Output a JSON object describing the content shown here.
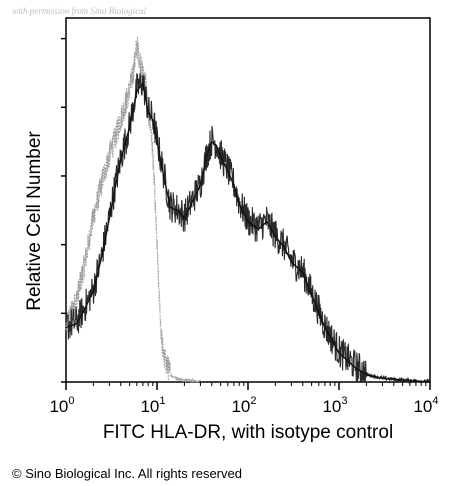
{
  "watermark": "with permission from Sino Biological",
  "copyright": "© Sino Biological Inc. All rights reserved",
  "chart_data": {
    "type": "area",
    "title": "",
    "xlabel": "FITC HLA-DR, with isotype control",
    "ylabel": "Relative Cell Number",
    "xscale": "log",
    "xlim": [
      1,
      10000
    ],
    "ylim": [
      0,
      100
    ],
    "grid": false,
    "legend": "none",
    "x_ticks": [
      {
        "value": 1,
        "base": "10",
        "exp": "0"
      },
      {
        "value": 10,
        "base": "10",
        "exp": "1"
      },
      {
        "value": 100,
        "base": "10",
        "exp": "2"
      },
      {
        "value": 1000,
        "base": "10",
        "exp": "3"
      },
      {
        "value": 10000,
        "base": "10",
        "exp": "4"
      }
    ],
    "series": [
      {
        "style": "dotted light gray",
        "x": [
          1,
          1.3,
          1.6,
          2,
          2.5,
          3,
          3.5,
          4,
          4.5,
          5,
          5.5,
          6,
          6.5,
          7,
          7.5,
          8,
          8.5,
          9,
          9.5,
          10,
          10.5,
          11,
          11.5,
          12,
          13,
          14,
          16,
          20,
          30
        ],
        "y": [
          15,
          22,
          32,
          45,
          55,
          62,
          67,
          72,
          76,
          80,
          85,
          92,
          88,
          84,
          82,
          74,
          70,
          62,
          50,
          37,
          25,
          15,
          9,
          6,
          4,
          2,
          1,
          0.5,
          0
        ]
      },
      {
        "style": "noisy dark",
        "x": [
          1,
          1.3,
          1.6,
          2,
          2.5,
          3,
          3.5,
          4,
          5,
          6,
          7,
          8,
          9,
          10,
          12,
          14,
          17,
          20,
          25,
          30,
          35,
          40,
          45,
          50,
          60,
          70,
          80,
          100,
          130,
          160,
          200,
          250,
          300,
          400,
          500,
          700,
          1000,
          1500,
          2000,
          3000,
          5000,
          10000
        ],
        "y": [
          15,
          16,
          20,
          25,
          35,
          45,
          54,
          61,
          70,
          80,
          82,
          74,
          72,
          66,
          56,
          48,
          47,
          45,
          50,
          54,
          62,
          66,
          65,
          62,
          58,
          54,
          49,
          44,
          42,
          44,
          40,
          37,
          33,
          30,
          24,
          15,
          8,
          4,
          2,
          1,
          0.5,
          0
        ]
      }
    ]
  }
}
